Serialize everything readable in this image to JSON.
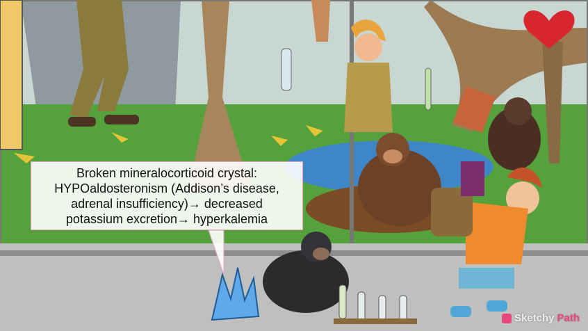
{
  "caption": {
    "text": "Broken mineralocorticoid crystal:\nHYPOaldosteronism (Addison’s disease,\nadrenal insufficiency)→ decreased\npotassium excretion→ hyperkalemia"
  },
  "brand": {
    "name_part1": "Sketchy",
    "name_part2": "Path",
    "accent_color": "#e8487d"
  },
  "scene_icons": [
    "zookeeper-icon",
    "chimpanzee-icon",
    "banana-peel-icon",
    "blue-crystal-icon",
    "test-tube-icon",
    "boy-with-backpack-icon",
    "red-heart-balloon-icon"
  ]
}
